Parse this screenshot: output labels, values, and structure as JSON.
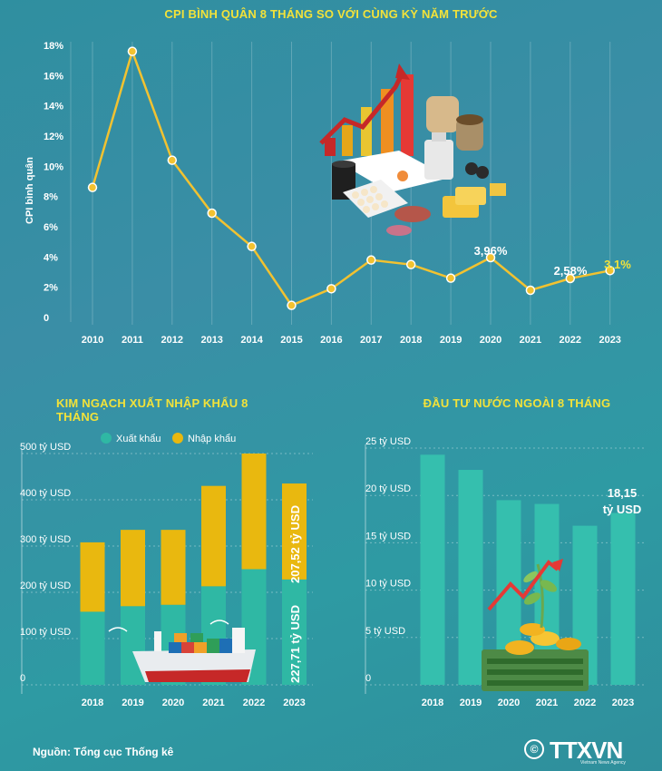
{
  "chart_data": [
    {
      "type": "line",
      "title": "CPI BÌNH QUÂN 8 THÁNG SO VỚI CÙNG KỲ NĂM TRƯỚC",
      "ylabel": "CPI bình quân",
      "x": [
        "2010",
        "2011",
        "2012",
        "2013",
        "2014",
        "2015",
        "2016",
        "2017",
        "2018",
        "2019",
        "2020",
        "2021",
        "2022",
        "2023"
      ],
      "values": [
        8.6,
        17.6,
        10.4,
        6.9,
        4.7,
        0.8,
        1.9,
        3.8,
        3.5,
        2.6,
        3.96,
        1.8,
        2.58,
        3.1
      ],
      "ylim": [
        0,
        18
      ],
      "yticks": [
        "0",
        "2%",
        "4%",
        "6%",
        "8%",
        "10%",
        "12%",
        "14%",
        "16%",
        "18%"
      ],
      "annotations": {
        "2020": "3,96%",
        "2022": "2,58%",
        "2023": "3,1%"
      },
      "line_color": "#f2c230"
    },
    {
      "type": "bar",
      "title": "KIM NGẠCH XUẤT NHẬP KHẨU 8 THÁNG",
      "categories": [
        "2018",
        "2019",
        "2020",
        "2021",
        "2022",
        "2023"
      ],
      "series": [
        {
          "name": "Xuất khẩu",
          "values": [
            158,
            170,
            173,
            213,
            250,
            227.71
          ],
          "color": "#2fb8a4"
        },
        {
          "name": "Nhập khẩu",
          "values": [
            150,
            165,
            162,
            217,
            250,
            207.52
          ],
          "color": "#e9b80f"
        }
      ],
      "ylim": [
        0,
        500
      ],
      "yticks": [
        "0",
        "100 tỷ USD",
        "200 tỷ USD",
        "300 tỷ USD",
        "400 tỷ USD",
        "500 tỷ USD"
      ],
      "data_labels": {
        "export_2023": "227,71 tỷ USD",
        "import_2023": "207,52 tỷ USD"
      },
      "legend": "top"
    },
    {
      "type": "bar",
      "title": "ĐẦU TƯ NƯỚC NGOÀI 8 THÁNG",
      "categories": [
        "2018",
        "2019",
        "2020",
        "2021",
        "2022",
        "2023"
      ],
      "values": [
        24.3,
        22.7,
        19.5,
        19.1,
        16.8,
        18.15
      ],
      "ylim": [
        0,
        25
      ],
      "yticks": [
        "0",
        "5 tỷ USD",
        "10 tỷ USD",
        "15 tỷ USD",
        "20 tỷ USD",
        "25 tỷ USD"
      ],
      "data_labels": {
        "2023": [
          "18,15",
          "tỷ USD"
        ]
      },
      "bar_color": "#35bfae"
    }
  ],
  "footer": {
    "source": "Nguồn: Tổng cục Thống kê",
    "copyright_symbol": "©",
    "brand": "TTXVN",
    "brand_sub": "Vietnam News Agency"
  }
}
